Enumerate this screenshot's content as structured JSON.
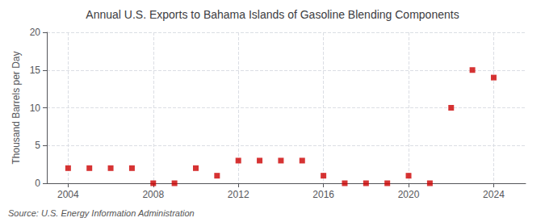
{
  "chart_data": {
    "type": "scatter",
    "title": "Annual U.S. Exports to Bahama Islands of Gasoline Blending Components",
    "ylabel": "Thousand Barrels per Day",
    "annotation": "Source: U.S. Energy Information Administration",
    "x": [
      2004,
      2005,
      2006,
      2007,
      2008,
      2009,
      2010,
      2011,
      2012,
      2013,
      2014,
      2015,
      2016,
      2017,
      2018,
      2019,
      2020,
      2021,
      2022,
      2023,
      2024
    ],
    "values": [
      2.0,
      2.0,
      2.0,
      2.0,
      0.0,
      0.0,
      2.0,
      1.0,
      3.0,
      3.0,
      3.0,
      3.0,
      1.0,
      0.0,
      0.0,
      0.0,
      1.0,
      0.0,
      10.0,
      15.0,
      14.0
    ],
    "color": "#cc0000",
    "marker": "square",
    "xlim": [
      2003.0,
      2025.5
    ],
    "ylim": [
      0,
      20
    ],
    "xticks": [
      2004,
      2008,
      2012,
      2016,
      2020,
      2024
    ],
    "yticks": [
      0,
      5,
      10,
      15,
      20
    ],
    "grid": true
  }
}
